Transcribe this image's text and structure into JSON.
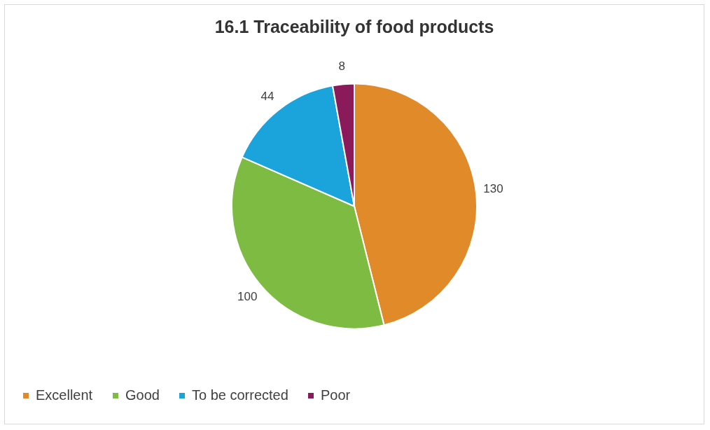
{
  "chart_data": {
    "type": "pie",
    "title": "16.1 Traceability of food products",
    "categories": [
      "Excellent",
      "Good",
      "To be corrected",
      "Poor"
    ],
    "values": [
      130,
      100,
      44,
      8
    ],
    "colors": [
      "#e08a2a",
      "#7dbb42",
      "#1ba3dc",
      "#8b1a5a"
    ],
    "data_labels": true,
    "legend": "bottom"
  }
}
